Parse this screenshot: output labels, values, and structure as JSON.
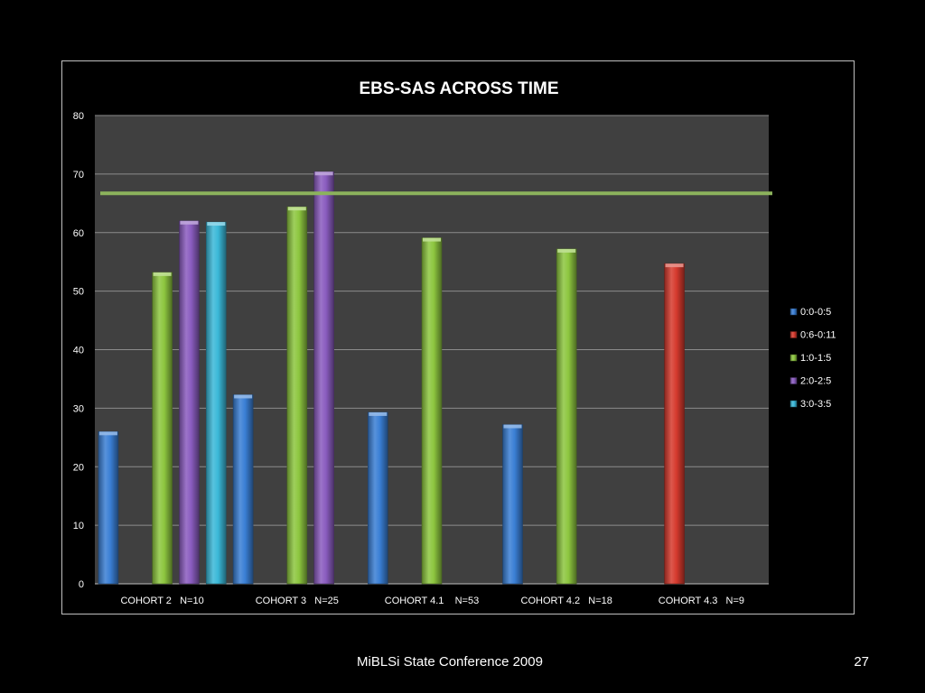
{
  "footer": {
    "conference": "MiBLSi State Conference 2009",
    "page_number": "27"
  },
  "chart_data": {
    "type": "bar",
    "title": "EBS-SAS ACROSS TIME",
    "xlabel": "",
    "ylabel": "",
    "ylim": [
      0,
      80
    ],
    "yticks": [
      "0",
      "10",
      "20",
      "30",
      "40",
      "50",
      "60",
      "70",
      "80"
    ],
    "grid": true,
    "legend_position": "right",
    "categories": [
      "COHORT 2   N=10",
      "COHORT 3   N=25",
      "COHORT 4.1    N=53",
      "COHORT 4.2   N=18",
      "COHORT 4.3   N=9"
    ],
    "series": [
      {
        "name": "0:0-0:5",
        "color": "#3a7fd5",
        "values": [
          26,
          32.3,
          29.3,
          27.2,
          null
        ]
      },
      {
        "name": "0:6-0:11",
        "color": "#d63a2e",
        "values": [
          null,
          null,
          null,
          null,
          54.7
        ]
      },
      {
        "name": "1:0-1:5",
        "color": "#8dc63f",
        "values": [
          53.2,
          64.4,
          59.1,
          57.2,
          null
        ]
      },
      {
        "name": "2:0-2:5",
        "color": "#8a5cbf",
        "values": [
          62,
          70.4,
          null,
          null,
          null
        ]
      },
      {
        "name": "3:0-3:5",
        "color": "#3ab8d8",
        "values": [
          61.8,
          null,
          null,
          null,
          null
        ]
      }
    ],
    "reference_line": {
      "value": 66.7,
      "color": "#8cb35c"
    },
    "colors": {
      "plot_background": "#404040",
      "gridline": "#8c8c8c",
      "text": "#ffffff"
    }
  }
}
